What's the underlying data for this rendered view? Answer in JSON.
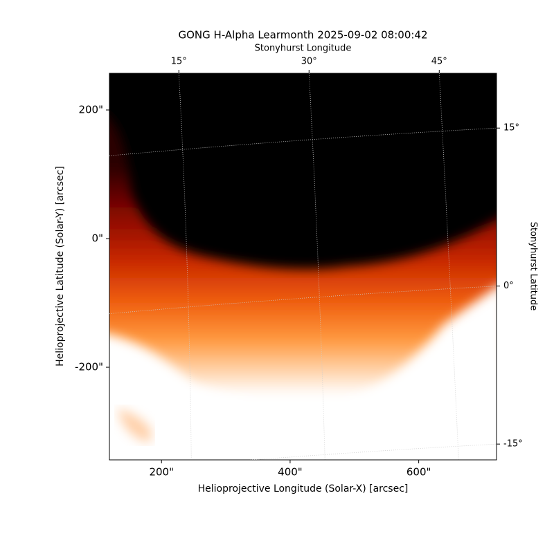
{
  "chart_data": {
    "type": "image",
    "title": "GONG H-Alpha Learmonth 2025-09-02 08:00:42",
    "xlabel": "Helioprojective Longitude (Solar-X) [arcsec]",
    "ylabel": "Helioprojective Latitude (Solar-Y) [arcsec]",
    "x2label": "Stonyhurst Longitude",
    "y2label": "Stonyhurst Latitude",
    "xlim": [
      119,
      721
    ],
    "ylim": [
      -344,
      257
    ],
    "xticks": [
      {
        "value": 200,
        "label": "200\""
      },
      {
        "value": 400,
        "label": "400\""
      },
      {
        "value": 600,
        "label": "600\""
      }
    ],
    "yticks": [
      {
        "value": -200,
        "label": "-200\""
      },
      {
        "value": 0,
        "label": "0\""
      },
      {
        "value": 200,
        "label": "200\""
      }
    ],
    "x2lim": [
      7,
      51.6
    ],
    "x2ticks": [
      {
        "value": 15,
        "label": "15°"
      },
      {
        "value": 30,
        "label": "30°"
      },
      {
        "value": 45,
        "label": "45°"
      }
    ],
    "y2lim": [
      -16.5,
      20.2
    ],
    "y2ticks": [
      {
        "value": -15,
        "label": "-15°"
      },
      {
        "value": 0,
        "label": "0°"
      },
      {
        "value": 15,
        "label": "15°"
      }
    ],
    "grid": true
  }
}
